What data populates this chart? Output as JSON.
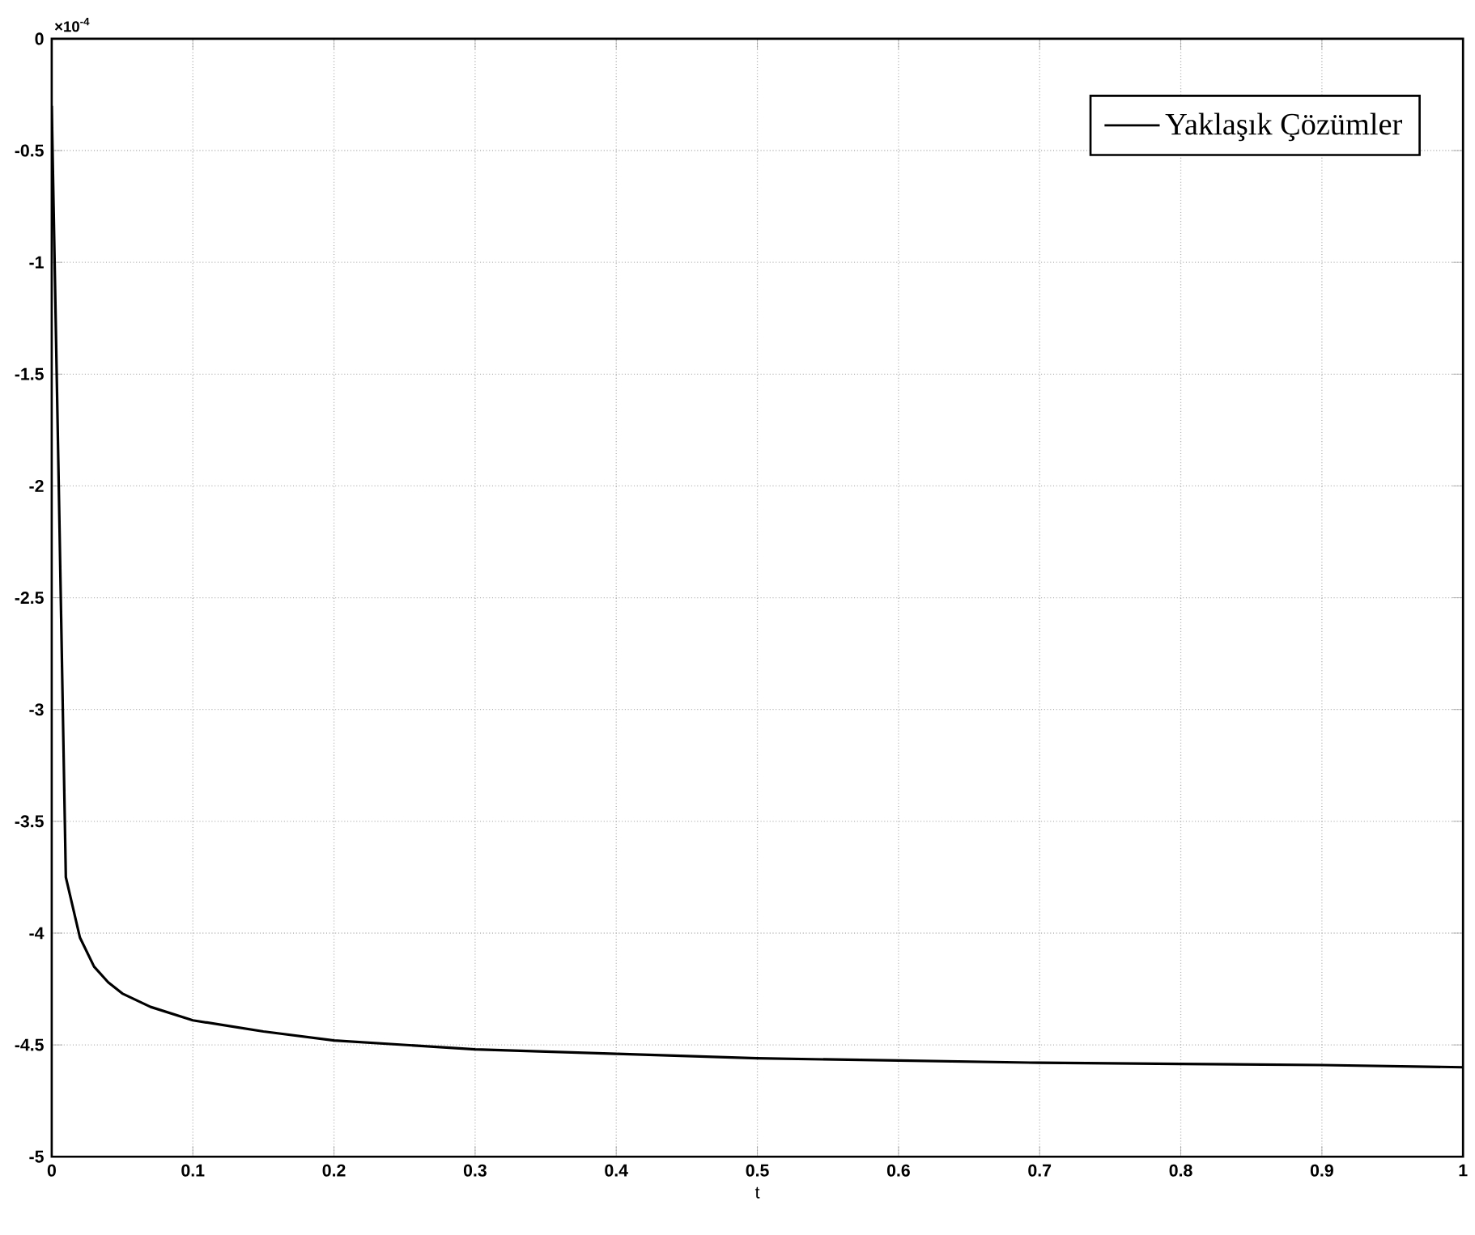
{
  "chart_data": {
    "type": "line",
    "xlabel": "t",
    "annotations": [
      "×10$^{-4}$"
    ],
    "xlim": [
      0,
      1
    ],
    "ylim": [
      -5,
      0
    ],
    "xticks": [
      0,
      0.1,
      0.2,
      0.3,
      0.4,
      0.5,
      0.6,
      0.7,
      0.8,
      0.9,
      1
    ],
    "yticks": [
      -5,
      -4.5,
      -4,
      -3.5,
      -3,
      -2.5,
      -2,
      -1.5,
      -1,
      -0.5,
      0
    ],
    "grid": true,
    "legend": "top right",
    "series": [
      {
        "name": "Yaklaşık Çözümler",
        "color": "#000000",
        "x": [
          0,
          0.005,
          0.01,
          0.02,
          0.03,
          0.04,
          0.05,
          0.07,
          0.1,
          0.15,
          0.2,
          0.3,
          0.4,
          0.5,
          0.6,
          0.7,
          0.8,
          0.9,
          1.0
        ],
        "values": [
          -0.3,
          -2.0,
          -3.75,
          -4.02,
          -4.15,
          -4.22,
          -4.27,
          -4.33,
          -4.39,
          -4.44,
          -4.48,
          -4.52,
          -4.54,
          -4.56,
          -4.57,
          -4.58,
          -4.585,
          -4.59,
          -4.6
        ]
      }
    ]
  }
}
